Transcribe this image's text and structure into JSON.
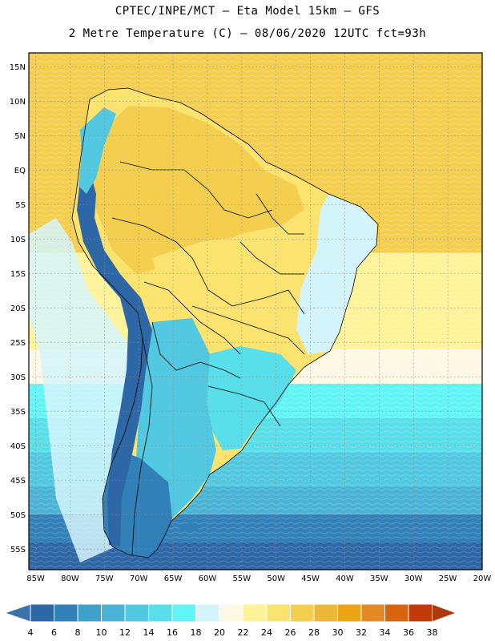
{
  "header": {
    "line1": "CPTEC/INPE/MCT –  Eta Model 15km – GFS",
    "line2": "2 Metre Temperature (C) – 08/06/2020 12UTC fct=93h"
  },
  "map": {
    "variable": "2 Metre Temperature",
    "units": "C",
    "lat_range": [
      -58,
      17
    ],
    "lon_range": [
      -86,
      -20
    ],
    "lat_labels": [
      "15N",
      "10N",
      "5N",
      "EQ",
      "5S",
      "10S",
      "15S",
      "20S",
      "25S",
      "30S",
      "35S",
      "40S",
      "45S",
      "50S",
      "55S"
    ],
    "lat_values": [
      15,
      10,
      5,
      0,
      -5,
      -10,
      -15,
      -20,
      -25,
      -30,
      -35,
      -40,
      -45,
      -50,
      -55
    ],
    "lon_labels": [
      "85W",
      "80W",
      "75W",
      "70W",
      "65W",
      "60W",
      "55W",
      "50W",
      "45W",
      "40W",
      "35W",
      "30W",
      "25W",
      "20W"
    ],
    "lon_values": [
      -85,
      -80,
      -75,
      -70,
      -65,
      -60,
      -55,
      -50,
      -45,
      -40,
      -35,
      -30,
      -25,
      -20
    ],
    "ocean_bands": [
      {
        "lat": 17,
        "temp": 28
      },
      {
        "lat": 10,
        "temp": 28
      },
      {
        "lat": 3,
        "temp": 27
      },
      {
        "lat": -5,
        "temp": 27
      },
      {
        "lat": -12,
        "temp": 24
      },
      {
        "lat": -20,
        "temp": 23
      },
      {
        "lat": -26,
        "temp": 22
      },
      {
        "lat": -31,
        "temp": 18
      },
      {
        "lat": -36,
        "temp": 16
      },
      {
        "lat": -41,
        "temp": 13
      },
      {
        "lat": -46,
        "temp": 11
      },
      {
        "lat": -50,
        "temp": 8
      },
      {
        "lat": -54,
        "temp": 6
      },
      {
        "lat": -58,
        "temp": 5
      }
    ],
    "pacific_cool_current_temp": 19,
    "land_regions": [
      {
        "name": "continent",
        "temp": 26
      },
      {
        "name": "amazon-north",
        "temp": 28
      },
      {
        "name": "brazil-central",
        "temp": 25
      },
      {
        "name": "northeast-brazil",
        "temp": 19
      },
      {
        "name": "south-brazil",
        "temp": 15
      },
      {
        "name": "argentina",
        "temp": 13
      },
      {
        "name": "patagonia",
        "temp": 7
      },
      {
        "name": "andes",
        "temp": 5
      },
      {
        "name": "colombian-andes",
        "temp": 14
      }
    ]
  },
  "colorbar": {
    "labels": [
      "4",
      "6",
      "8",
      "10",
      "12",
      "14",
      "16",
      "18",
      "20",
      "22",
      "24",
      "26",
      "28",
      "30",
      "32",
      "34",
      "36",
      "38"
    ],
    "bins": [
      {
        "max": 4,
        "color": "#3b72ae"
      },
      {
        "max": 6,
        "color": "#2e67a6"
      },
      {
        "max": 8,
        "color": "#3280b8"
      },
      {
        "max": 10,
        "color": "#3fa1c9"
      },
      {
        "max": 12,
        "color": "#4bb4d6"
      },
      {
        "max": 14,
        "color": "#52c9e0"
      },
      {
        "max": 16,
        "color": "#59dfe9"
      },
      {
        "max": 18,
        "color": "#63f5f5"
      },
      {
        "max": 20,
        "color": "#d4f4fb"
      },
      {
        "max": 22,
        "color": "#fff8e4"
      },
      {
        "max": 24,
        "color": "#fff39a"
      },
      {
        "max": 26,
        "color": "#fbe36f"
      },
      {
        "max": 28,
        "color": "#f4cf4f"
      },
      {
        "max": 30,
        "color": "#edb73a"
      },
      {
        "max": 32,
        "color": "#eda513"
      },
      {
        "max": 34,
        "color": "#e48a24"
      },
      {
        "max": 36,
        "color": "#d8640f"
      },
      {
        "max": 38,
        "color": "#c23a0a"
      },
      {
        "max": 99,
        "color": "#b0380f"
      }
    ]
  }
}
